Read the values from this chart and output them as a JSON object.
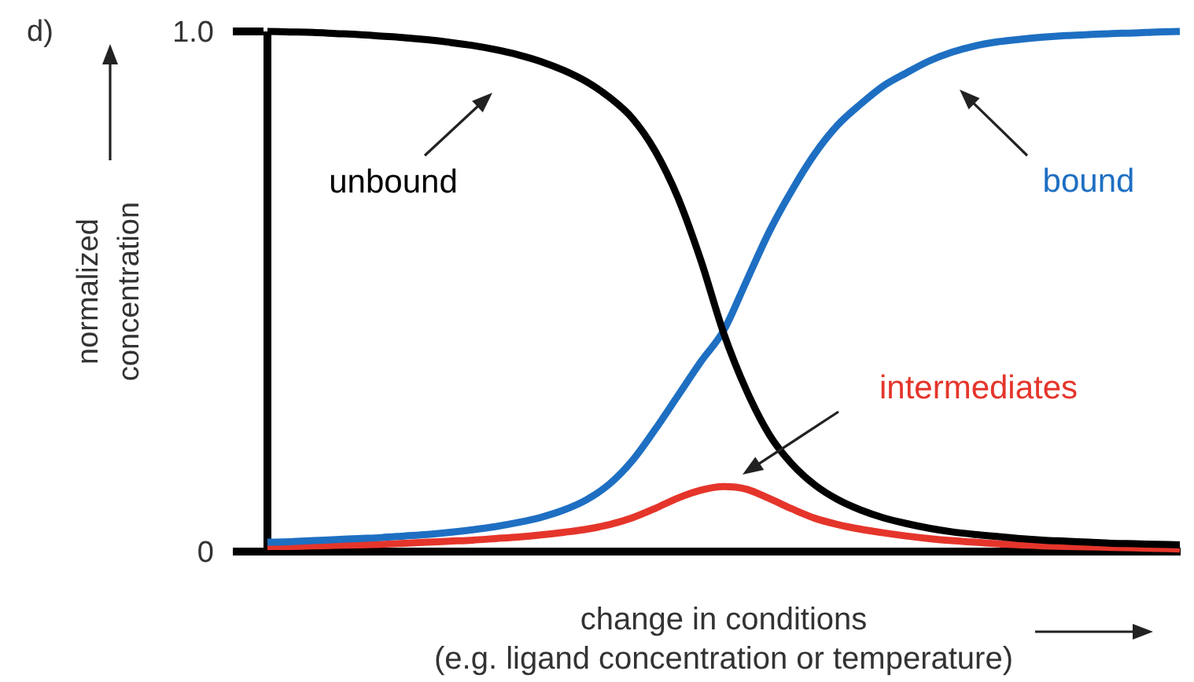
{
  "chart_data": {
    "type": "line",
    "annotations": [
      "d)"
    ],
    "ylabel": "normalized\nconcentration",
    "xlabel": "change in conditions\n(e.g. ligand concentration or temperature)",
    "categories": [
      null,
      null,
      null,
      null,
      null,
      null,
      null,
      null,
      null,
      null,
      null,
      null,
      null,
      null,
      null,
      null,
      null,
      null,
      null,
      null,
      null,
      null,
      null,
      null,
      null,
      null,
      null,
      null,
      null,
      null,
      null,
      null,
      null,
      null,
      null,
      null,
      null,
      null,
      null,
      null,
      null
    ],
    "series": [
      {
        "name": "unbound",
        "color": "#000000",
        "values": [
          1.0,
          0.999,
          0.998,
          0.996,
          0.994,
          0.991,
          0.988,
          0.984,
          0.979,
          0.973,
          0.965,
          0.955,
          0.942,
          0.925,
          0.903,
          0.873,
          0.833,
          0.77,
          0.68,
          0.56,
          0.42,
          0.31,
          0.225,
          0.168,
          0.128,
          0.1,
          0.08,
          0.065,
          0.054,
          0.045,
          0.038,
          0.033,
          0.029,
          0.025,
          0.022,
          0.02,
          0.018,
          0.016,
          0.015,
          0.014,
          0.013
        ]
      },
      {
        "name": "bound",
        "color": "#1e6fc2",
        "values": [
          0.018,
          0.019,
          0.021,
          0.023,
          0.025,
          0.027,
          0.03,
          0.033,
          0.037,
          0.042,
          0.048,
          0.056,
          0.066,
          0.08,
          0.1,
          0.13,
          0.175,
          0.235,
          0.3,
          0.365,
          0.425,
          0.52,
          0.615,
          0.695,
          0.765,
          0.82,
          0.86,
          0.895,
          0.92,
          0.943,
          0.96,
          0.972,
          0.98,
          0.985,
          0.989,
          0.992,
          0.994,
          0.996,
          0.997,
          0.999,
          1.0
        ]
      },
      {
        "name": "intermediates",
        "color": "#e5352b",
        "values": [
          0.01,
          0.01,
          0.011,
          0.012,
          0.013,
          0.014,
          0.016,
          0.018,
          0.02,
          0.022,
          0.025,
          0.028,
          0.032,
          0.037,
          0.043,
          0.052,
          0.065,
          0.083,
          0.103,
          0.118,
          0.125,
          0.12,
          0.102,
          0.082,
          0.064,
          0.052,
          0.043,
          0.036,
          0.03,
          0.025,
          0.021,
          0.018,
          0.015,
          0.013,
          0.011,
          0.01,
          0.009,
          0.008,
          0.007,
          0.006,
          0.005
        ]
      }
    ],
    "ylim": [
      0,
      1
    ],
    "yticks": [
      0,
      {
        "value": 1,
        "label": "1.0"
      }
    ],
    "grid": false,
    "legend": false,
    "marker": "none",
    "line_style": "solid",
    "tick_labels": "y"
  }
}
